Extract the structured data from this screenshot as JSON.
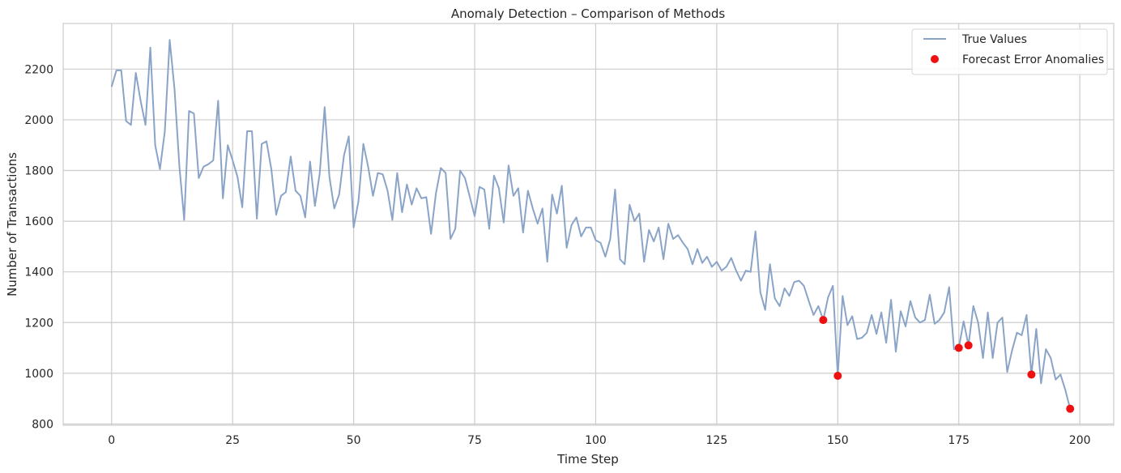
{
  "chart_data": {
    "type": "line",
    "title": "Anomaly Detection – Comparison of Methods",
    "xlabel": "Time Step",
    "ylabel": "Number of Transactions",
    "xlim": [
      -10,
      207
    ],
    "ylim": [
      795,
      2380
    ],
    "xticks": [
      0,
      25,
      50,
      75,
      100,
      125,
      150,
      175,
      200
    ],
    "yticks": [
      800,
      1000,
      1200,
      1400,
      1600,
      1800,
      2000,
      2200
    ],
    "grid": true,
    "legend_position": "top-right",
    "series": [
      {
        "name": "True Values",
        "kind": "line",
        "color": "#8aa4c8",
        "x": [
          0,
          1,
          2,
          3,
          4,
          5,
          6,
          7,
          8,
          9,
          10,
          11,
          12,
          13,
          14,
          15,
          16,
          17,
          18,
          19,
          20,
          21,
          22,
          23,
          24,
          25,
          26,
          27,
          28,
          29,
          30,
          31,
          32,
          33,
          34,
          35,
          36,
          37,
          38,
          39,
          40,
          41,
          42,
          43,
          44,
          45,
          46,
          47,
          48,
          49,
          50,
          51,
          52,
          53,
          54,
          55,
          56,
          57,
          58,
          59,
          60,
          61,
          62,
          63,
          64,
          65,
          66,
          67,
          68,
          69,
          70,
          71,
          72,
          73,
          74,
          75,
          76,
          77,
          78,
          79,
          80,
          81,
          82,
          83,
          84,
          85,
          86,
          87,
          88,
          89,
          90,
          91,
          92,
          93,
          94,
          95,
          96,
          97,
          98,
          99,
          100,
          101,
          102,
          103,
          104,
          105,
          106,
          107,
          108,
          109,
          110,
          111,
          112,
          113,
          114,
          115,
          116,
          117,
          118,
          119,
          120,
          121,
          122,
          123,
          124,
          125,
          126,
          127,
          128,
          129,
          130,
          131,
          132,
          133,
          134,
          135,
          136,
          137,
          138,
          139,
          140,
          141,
          142,
          143,
          144,
          145,
          146,
          147,
          148,
          149,
          150,
          151,
          152,
          153,
          154,
          155,
          156,
          157,
          158,
          159,
          160,
          161,
          162,
          163,
          164,
          165,
          166,
          167,
          168,
          169,
          170,
          171,
          172,
          173,
          174,
          175,
          176,
          177,
          178,
          179,
          180,
          181,
          182,
          183,
          184,
          185,
          186,
          187,
          188,
          189,
          190,
          191,
          192,
          193,
          194,
          195,
          196,
          197,
          198
        ],
        "values": [
          2130,
          2195,
          2195,
          1995,
          1980,
          2185,
          2075,
          1980,
          2285,
          1900,
          1805,
          1955,
          2315,
          2120,
          1820,
          1605,
          2035,
          2025,
          1770,
          1815,
          1825,
          1840,
          2075,
          1690,
          1900,
          1840,
          1775,
          1655,
          1955,
          1955,
          1610,
          1905,
          1915,
          1805,
          1625,
          1700,
          1715,
          1855,
          1720,
          1700,
          1615,
          1835,
          1660,
          1790,
          2050,
          1775,
          1650,
          1705,
          1860,
          1935,
          1575,
          1680,
          1905,
          1815,
          1700,
          1790,
          1785,
          1720,
          1605,
          1790,
          1635,
          1745,
          1665,
          1730,
          1690,
          1695,
          1550,
          1710,
          1810,
          1790,
          1530,
          1570,
          1800,
          1770,
          1695,
          1620,
          1735,
          1725,
          1570,
          1780,
          1730,
          1595,
          1820,
          1700,
          1730,
          1555,
          1720,
          1650,
          1590,
          1650,
          1440,
          1705,
          1630,
          1740,
          1495,
          1585,
          1615,
          1540,
          1575,
          1575,
          1525,
          1515,
          1460,
          1530,
          1725,
          1450,
          1430,
          1665,
          1600,
          1630,
          1440,
          1565,
          1520,
          1575,
          1450,
          1590,
          1530,
          1545,
          1515,
          1490,
          1430,
          1490,
          1435,
          1460,
          1420,
          1440,
          1405,
          1420,
          1455,
          1405,
          1365,
          1405,
          1400,
          1560,
          1320,
          1250,
          1430,
          1295,
          1265,
          1335,
          1305,
          1360,
          1365,
          1345,
          1285,
          1230,
          1265,
          1210,
          1300,
          1345,
          990,
          1305,
          1190,
          1225,
          1135,
          1140,
          1160,
          1230,
          1155,
          1240,
          1120,
          1290,
          1085,
          1245,
          1185,
          1285,
          1220,
          1200,
          1210,
          1310,
          1195,
          1210,
          1240,
          1340,
          1095,
          1100,
          1205,
          1110,
          1265,
          1200,
          1060,
          1240,
          1060,
          1200,
          1220,
          1005,
          1090,
          1160,
          1150,
          1230,
          995,
          1175,
          960,
          1095,
          1060,
          975,
          995,
          935,
          860
        ]
      },
      {
        "name": "Forecast Error Anomalies",
        "kind": "scatter",
        "color": "#ee1111",
        "x": [
          147,
          150,
          175,
          177,
          190,
          198
        ],
        "values": [
          1210,
          990,
          1100,
          1110,
          995,
          860
        ]
      }
    ]
  }
}
